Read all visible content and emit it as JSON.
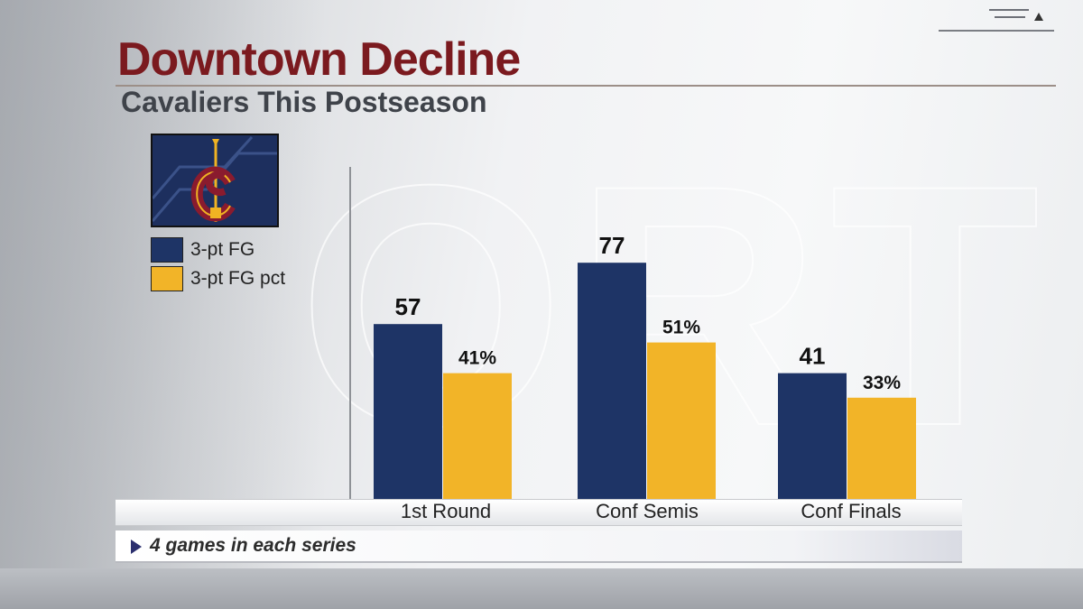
{
  "title": "Downtown Decline",
  "subtitle": "Cavaliers This Postseason",
  "footnote": "4 games in each series",
  "colors": {
    "title": "#7b1a1f",
    "navy": "#1e3466",
    "gold": "#f2b428",
    "logo_bg": "#1d2f5e"
  },
  "icons": {
    "team_logo": "cavaliers-logo-icon",
    "footnote_marker": "play-triangle-icon",
    "corner_menu": "menu-lines-icon",
    "corner_arrow": "up-arrow-icon"
  },
  "chart_data": {
    "type": "bar",
    "categories": [
      "1st Round",
      "Conf Semis",
      "Conf Finals"
    ],
    "series": [
      {
        "name": "3-pt FG",
        "values": [
          57,
          77,
          41
        ],
        "labels": [
          "57",
          "77",
          "41"
        ],
        "color": "#1e3466"
      },
      {
        "name": "3-pt FG pct",
        "values": [
          41,
          51,
          33
        ],
        "labels": [
          "41%",
          "51%",
          "33%"
        ],
        "color": "#f2b428"
      }
    ],
    "legend": "left",
    "grid": false
  }
}
